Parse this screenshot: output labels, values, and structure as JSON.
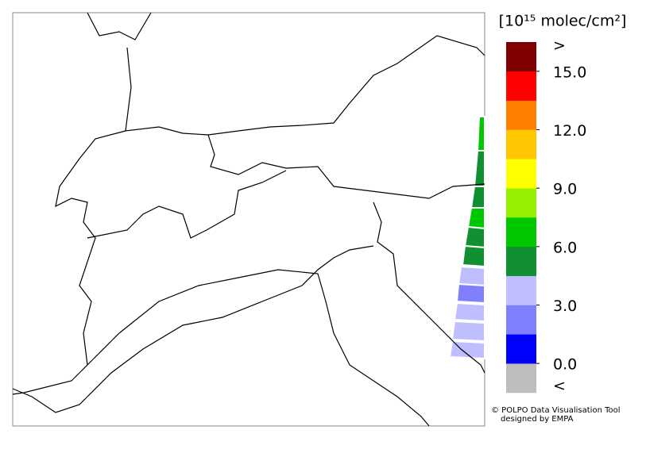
{
  "colorbar": {
    "title": "[10¹⁵ molec/cm²]",
    "colors": [
      "#bebebe",
      "#0000ff",
      "#8080ff",
      "#bfbfff",
      "#109030",
      "#00c800",
      "#96f000",
      "#ffff00",
      "#ffc800",
      "#ff8000",
      "#ff0000",
      "#800000"
    ],
    "clim": [
      0,
      15
    ],
    "ticks": [
      {
        "value": 0,
        "label": "0.0"
      },
      {
        "value": 3,
        "label": "3.0"
      },
      {
        "value": 6,
        "label": "6.0"
      },
      {
        "value": 9,
        "label": "9.0"
      },
      {
        "value": 12,
        "label": "12.0"
      },
      {
        "value": 15,
        "label": "15.0"
      }
    ],
    "over_label": ">",
    "under_label": "<"
  },
  "credit": {
    "line1": "© POLPO Data Visualisation Tool",
    "line2": "designed by EMPA"
  }
}
